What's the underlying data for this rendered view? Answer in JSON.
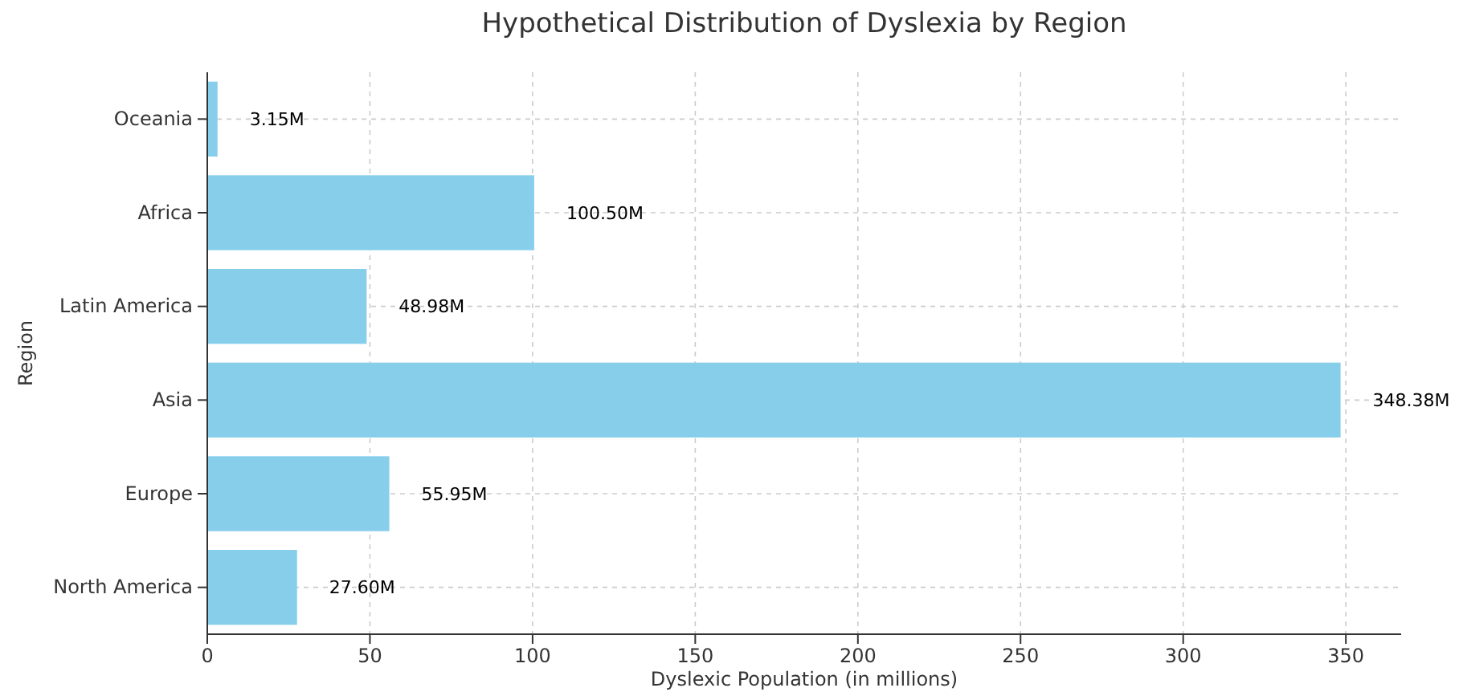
{
  "chart_data": {
    "type": "bar",
    "orientation": "horizontal",
    "title": "Hypothetical Distribution of Dyslexia by Region",
    "xlabel": "Dyslexic Population (in millions)",
    "ylabel": "Region",
    "categories": [
      "Oceania",
      "Africa",
      "Latin America",
      "Asia",
      "Europe",
      "North America"
    ],
    "values": [
      3.15,
      100.5,
      48.98,
      348.38,
      55.95,
      27.6
    ],
    "value_labels": [
      "3.15M",
      "100.50M",
      "48.98M",
      "348.38M",
      "55.95M",
      "27.60M"
    ],
    "color": "#87ceeb",
    "xlim": [
      0,
      367
    ],
    "xticks": [
      0,
      50,
      100,
      150,
      200,
      250,
      300,
      350
    ],
    "grid": true
  }
}
